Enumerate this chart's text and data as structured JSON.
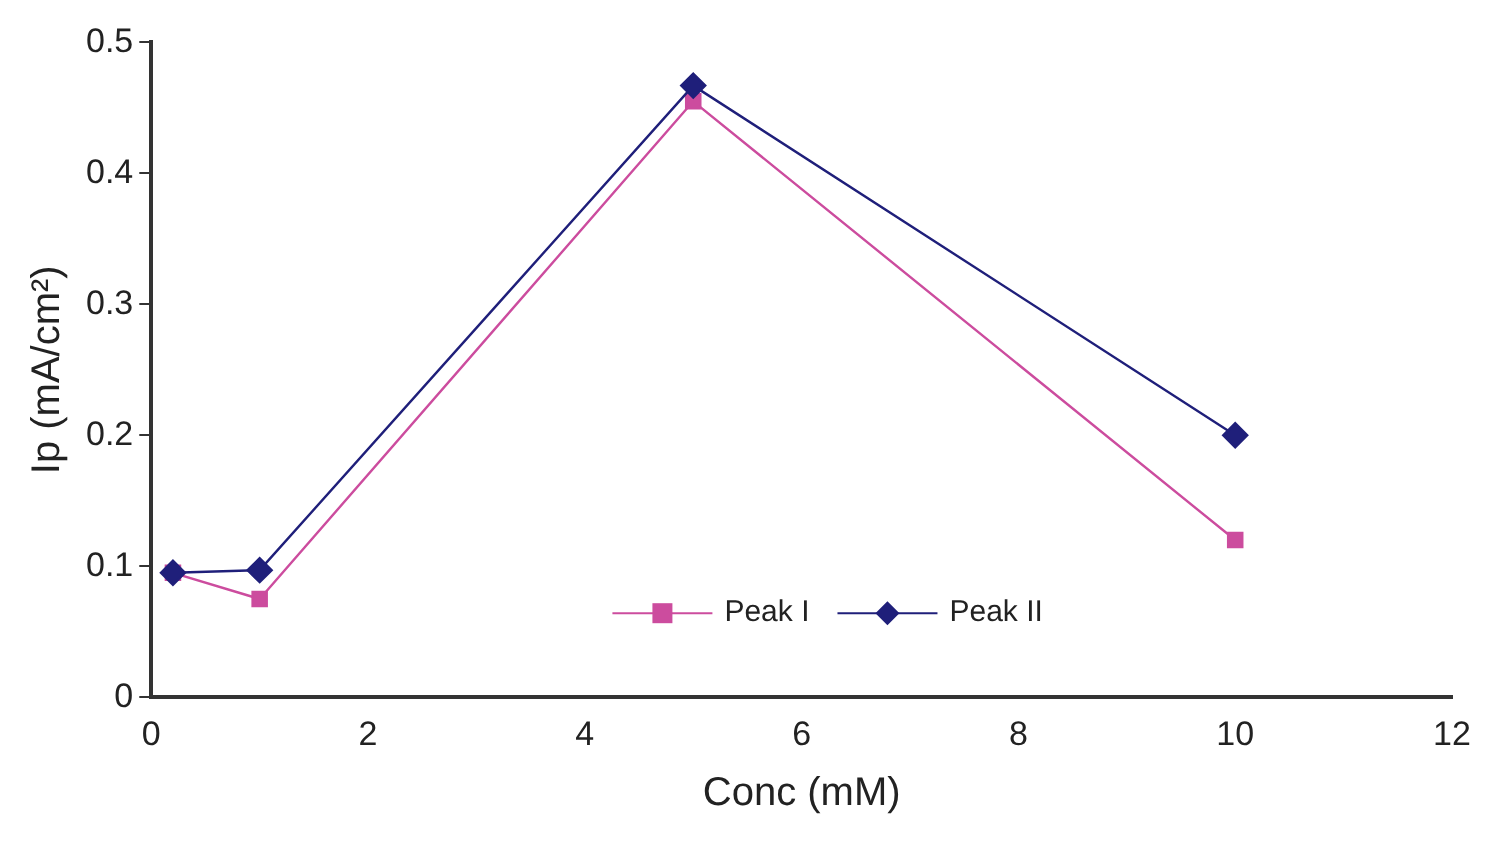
{
  "chart_data": {
    "type": "line",
    "xlabel": "Conc (mM)",
    "ylabel": "Ip (mA/cm²)",
    "series": [
      {
        "name": "Peak I",
        "color": "#cc4c9e",
        "marker": "square",
        "x": [
          0.2,
          1,
          5,
          10
        ],
        "values": [
          0.095,
          0.075,
          0.455,
          0.12
        ]
      },
      {
        "name": "Peak II",
        "color": "#1f1f7a",
        "marker": "diamond",
        "x": [
          0.2,
          1,
          5,
          10
        ],
        "values": [
          0.095,
          0.097,
          0.467,
          0.2
        ]
      }
    ],
    "xlim": [
      0,
      12
    ],
    "xticks": [
      0,
      2,
      4,
      6,
      8,
      10,
      12
    ],
    "ylim": [
      0,
      0.5
    ],
    "yticks": [
      0,
      0.1,
      0.2,
      0.3,
      0.4,
      0.5
    ],
    "grid": false,
    "legend": "bottom"
  }
}
